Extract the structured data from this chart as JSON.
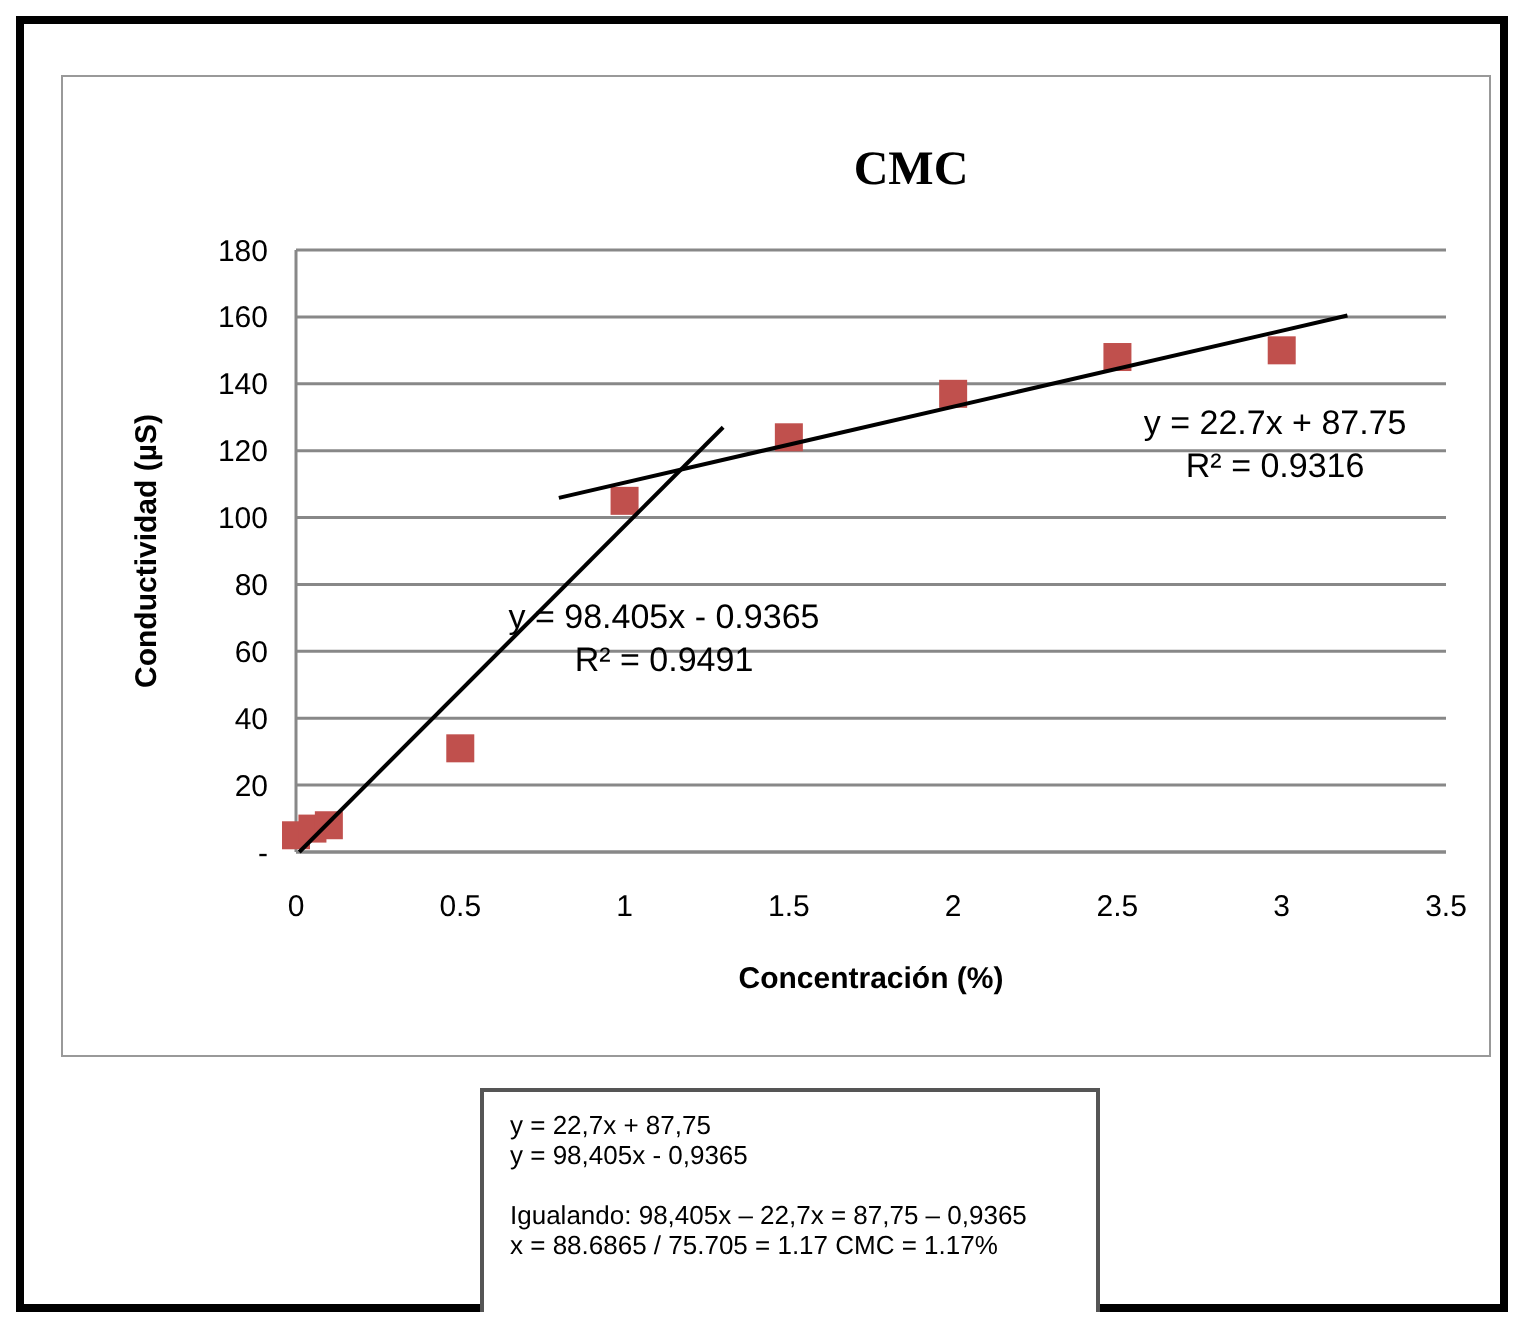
{
  "chart_data": {
    "type": "scatter",
    "title": "CMC",
    "xlabel": "Concentración (%)",
    "ylabel": "Conductividad (µS)",
    "xlim": [
      0,
      3.5
    ],
    "xticks": [
      0,
      0.5,
      1,
      1.5,
      2,
      2.5,
      3,
      3.5
    ],
    "ylim": [
      0,
      180
    ],
    "yticks": [
      {
        "value": 0,
        "label": "-"
      },
      20,
      40,
      60,
      80,
      100,
      120,
      140,
      160,
      180
    ],
    "grid": "y",
    "series": [
      {
        "marker": "square",
        "color": "#c0504d",
        "x": [
          0,
          0.05,
          0.1,
          0.5,
          1,
          1.5,
          2,
          2.5,
          3
        ],
        "values": [
          5,
          7,
          8,
          31,
          105,
          124,
          137,
          148,
          150
        ]
      },
      {
        "type": "line",
        "marker": "none",
        "color": "#000000",
        "x": [
          0.01,
          1.3
        ],
        "values": [
          0,
          127
        ]
      },
      {
        "type": "line",
        "marker": "none",
        "color": "#000000",
        "x": [
          0.8,
          3.2
        ],
        "values": [
          105.9,
          160.4
        ]
      }
    ],
    "annotations": [
      "y = 22.7x + 87.75",
      "R² = 0.9316",
      "y = 98.405x - 0.9365",
      "R² = 0.9491",
      "y = 22,7x + 87,75",
      "y = 98,405x - 0,9365",
      "Igualando: 98,405x – 22,7x = 87,75 – 0,9365",
      "x = 88.6865 / 75.705 =  1.17 CMC = 1.17%"
    ]
  }
}
